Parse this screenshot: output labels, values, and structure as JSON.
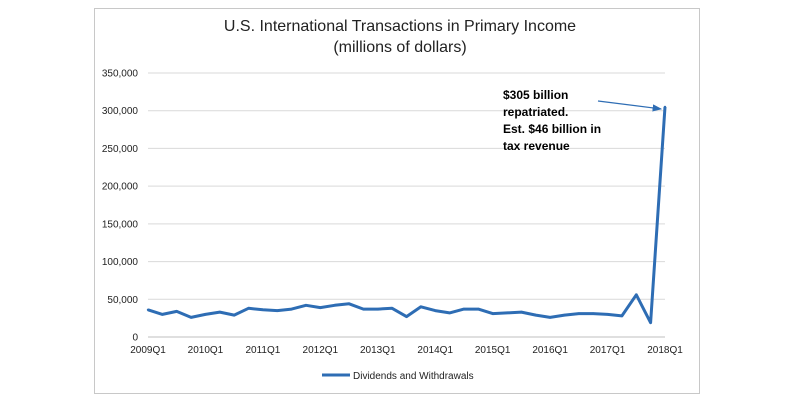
{
  "chart_data": {
    "type": "line",
    "title": "U.S. International Transactions in Primary Income",
    "subtitle": "(millions of dollars)",
    "xlabel": "",
    "ylabel": "",
    "ylim": [
      0,
      350000
    ],
    "yticks": [
      0,
      50000,
      100000,
      150000,
      200000,
      250000,
      300000,
      350000
    ],
    "ytick_labels": [
      "0",
      "50,000",
      "100,000",
      "150,000",
      "200,000",
      "250,000",
      "300,000",
      "350,000"
    ],
    "grid": "horizontal",
    "legend_position": "bottom",
    "categories": [
      "2009Q1",
      "2009Q2",
      "2009Q3",
      "2009Q4",
      "2010Q1",
      "2010Q2",
      "2010Q3",
      "2010Q4",
      "2011Q1",
      "2011Q2",
      "2011Q3",
      "2011Q4",
      "2012Q1",
      "2012Q2",
      "2012Q3",
      "2012Q4",
      "2013Q1",
      "2013Q2",
      "2013Q3",
      "2013Q4",
      "2014Q1",
      "2014Q2",
      "2014Q3",
      "2014Q4",
      "2015Q1",
      "2015Q2",
      "2015Q3",
      "2015Q4",
      "2016Q1",
      "2016Q2",
      "2016Q3",
      "2016Q4",
      "2017Q1",
      "2017Q2",
      "2017Q3",
      "2017Q4",
      "2018Q1"
    ],
    "xtick_labels": [
      "2009Q1",
      "2010Q1",
      "2011Q1",
      "2012Q1",
      "2013Q1",
      "2014Q1",
      "2015Q1",
      "2016Q1",
      "2017Q1",
      "2018Q1"
    ],
    "series": [
      {
        "name": "Dividends and Withdrawals",
        "color": "#2e6db4",
        "values": [
          36000,
          30000,
          34000,
          26000,
          30000,
          33000,
          29000,
          38000,
          36000,
          35000,
          37000,
          42000,
          39000,
          42000,
          44000,
          37000,
          37000,
          38000,
          27000,
          40000,
          35000,
          32000,
          37000,
          37000,
          31000,
          32000,
          33000,
          29000,
          26000,
          29000,
          31000,
          31000,
          30000,
          28000,
          56000,
          19000,
          305000
        ]
      }
    ],
    "annotations": [
      {
        "lines": [
          "$305  billion",
          "repatriated.",
          "Est. $46 billion in",
          "tax revenue"
        ],
        "arrow_to": {
          "category": "2018Q1",
          "value": 305000
        }
      }
    ]
  }
}
